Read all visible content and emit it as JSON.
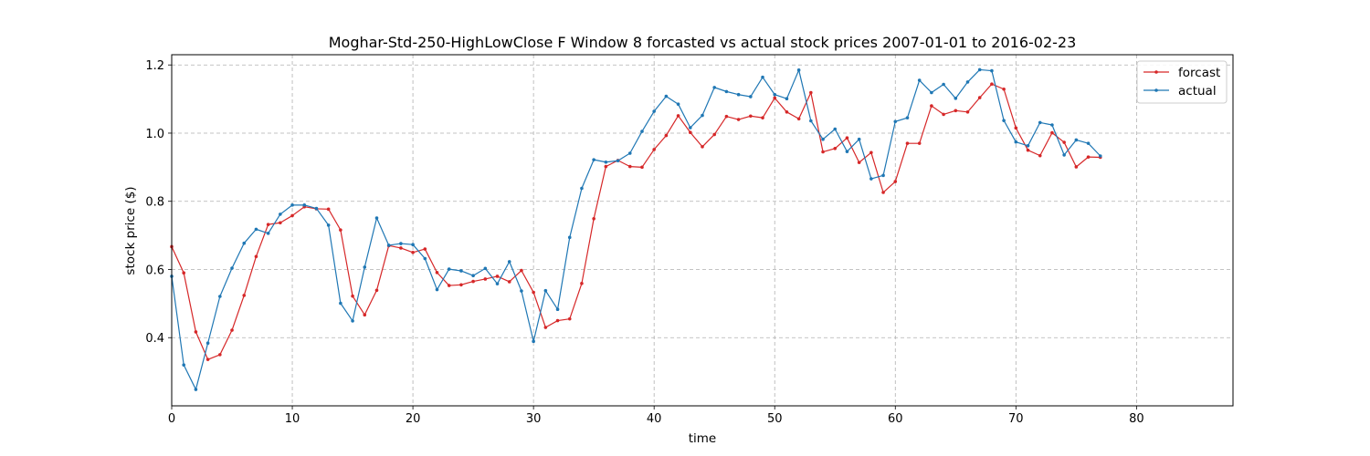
{
  "chart_data": {
    "type": "line",
    "title": "Moghar-Std-250-HighLowClose F Window 8 forcasted vs actual stock prices 2007-01-01 to 2016-02-23",
    "xlabel": "time",
    "ylabel": "stock price ($)",
    "xlim": [
      0,
      88
    ],
    "ylim": [
      0.2,
      1.23
    ],
    "x_ticks": [
      0,
      10,
      20,
      30,
      40,
      50,
      60,
      70,
      80
    ],
    "y_ticks": [
      0.4,
      0.6,
      0.8,
      1.0,
      1.2
    ],
    "x_tick_labels": [
      "0",
      "10",
      "20",
      "30",
      "40",
      "50",
      "60",
      "70",
      "80"
    ],
    "y_tick_labels": [
      "0.4",
      "0.6",
      "0.8",
      "1.0",
      "1.2"
    ],
    "grid": true,
    "legend_position": "top-right",
    "series": [
      {
        "name": "forcast",
        "color": "#d62728",
        "values": [
          0.667,
          0.59,
          0.417,
          0.336,
          0.35,
          0.422,
          0.524,
          0.638,
          0.732,
          0.737,
          0.758,
          0.784,
          0.778,
          0.777,
          0.716,
          0.522,
          0.467,
          0.539,
          0.67,
          0.663,
          0.65,
          0.66,
          0.591,
          0.553,
          0.555,
          0.565,
          0.572,
          0.58,
          0.564,
          0.597,
          0.533,
          0.43,
          0.45,
          0.455,
          0.559,
          0.749,
          0.902,
          0.92,
          0.902,
          0.9,
          0.952,
          0.993,
          1.051,
          1.002,
          0.96,
          0.996,
          1.049,
          1.04,
          1.05,
          1.045,
          1.103,
          1.062,
          1.042,
          1.119,
          0.945,
          0.955,
          0.986,
          0.914,
          0.943,
          0.826,
          0.858,
          0.97,
          0.97,
          1.08,
          1.055,
          1.066,
          1.062,
          1.104,
          1.144,
          1.129,
          1.015,
          0.95,
          0.934,
          1.001,
          0.973,
          0.901,
          0.93,
          0.929
        ]
      },
      {
        "name": "actual",
        "color": "#1f77b4",
        "values": [
          0.58,
          0.32,
          0.248,
          0.384,
          0.521,
          0.604,
          0.677,
          0.718,
          0.706,
          0.762,
          0.789,
          0.789,
          0.779,
          0.73,
          0.501,
          0.449,
          0.607,
          0.751,
          0.671,
          0.676,
          0.673,
          0.632,
          0.541,
          0.601,
          0.596,
          0.582,
          0.603,
          0.558,
          0.623,
          0.537,
          0.389,
          0.538,
          0.483,
          0.694,
          0.838,
          0.922,
          0.915,
          0.919,
          0.941,
          1.005,
          1.064,
          1.108,
          1.085,
          1.016,
          1.052,
          1.134,
          1.122,
          1.113,
          1.107,
          1.164,
          1.113,
          1.101,
          1.185,
          1.036,
          0.982,
          1.012,
          0.946,
          0.982,
          0.866,
          0.876,
          1.034,
          1.045,
          1.155,
          1.119,
          1.143,
          1.102,
          1.15,
          1.186,
          1.183,
          1.037,
          0.974,
          0.963,
          1.031,
          1.024,
          0.936,
          0.98,
          0.97,
          0.933
        ]
      }
    ]
  }
}
